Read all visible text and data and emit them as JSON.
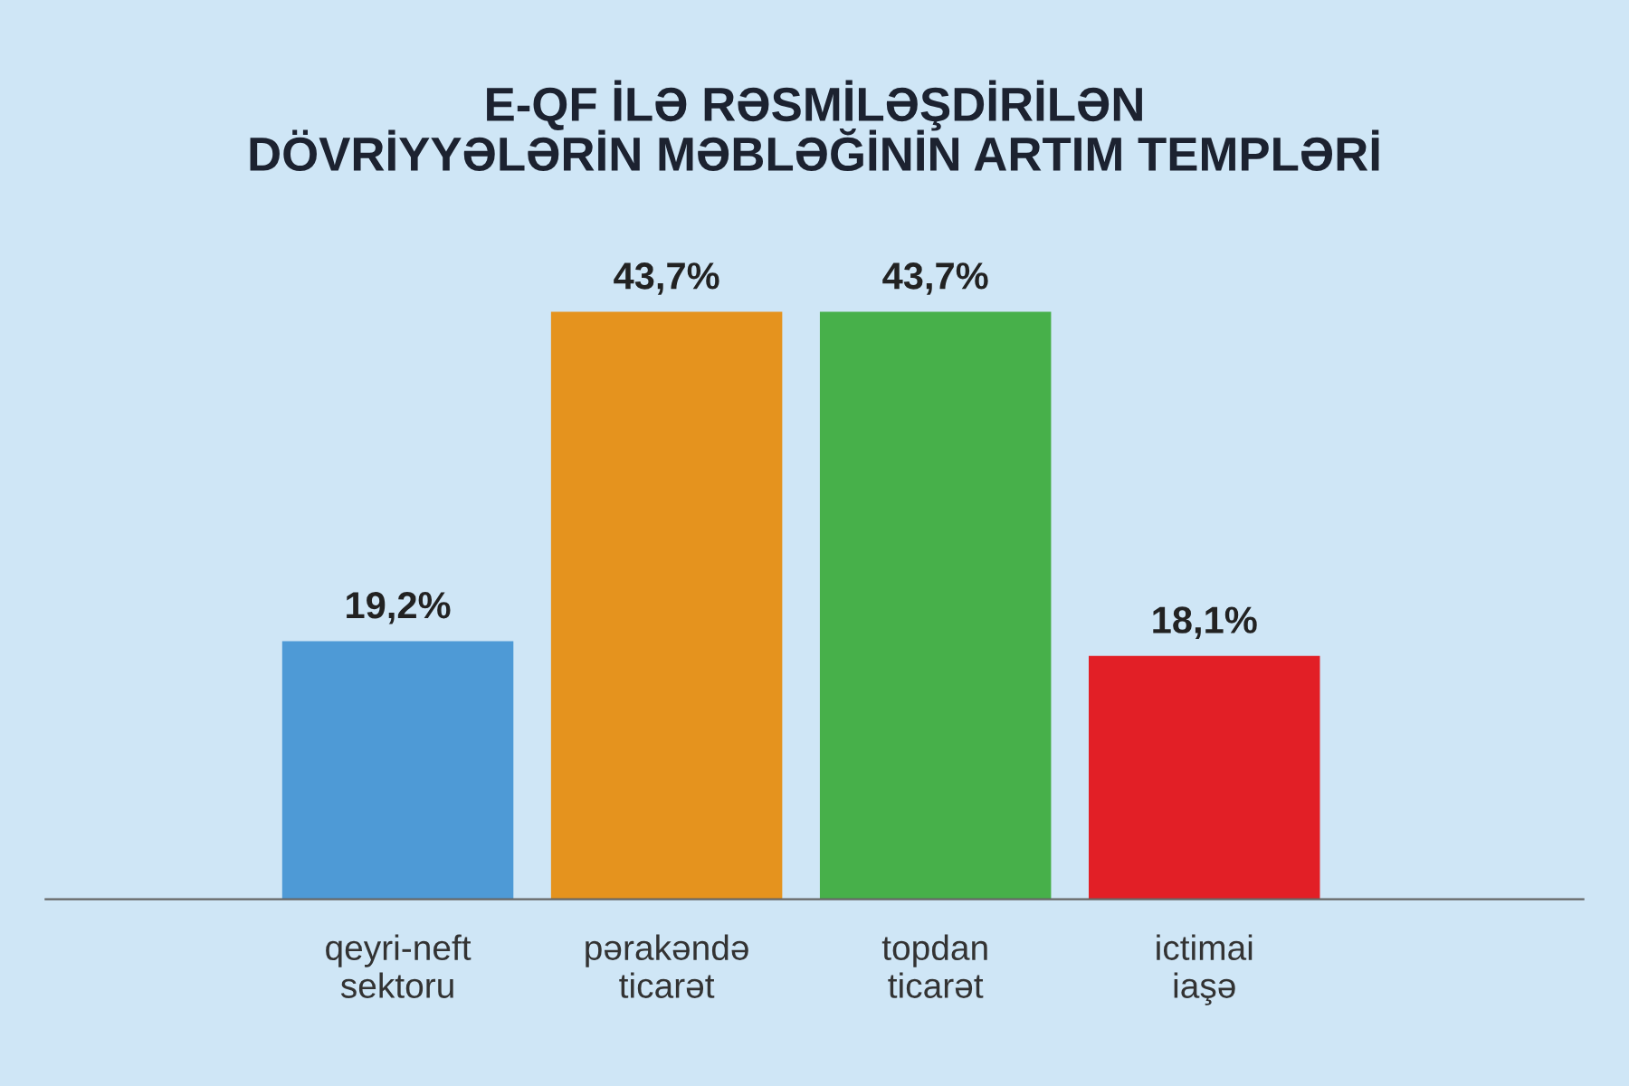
{
  "chart_data": {
    "type": "bar",
    "title": "E-QF İLƏ RƏSMİLƏŞDİRİLƏN\nDÖVRİYYƏLƏRİN MƏBLƏĞİNİN ARTIM TEMPLƏRİ",
    "categories": [
      "qeyri-neft\nsektoru",
      "pərakəndə\nticarət",
      "topdan\nticarət",
      "ictimai\niaşə"
    ],
    "values": [
      19.2,
      43.7,
      43.7,
      18.1
    ],
    "colors": [
      "#4e9ad6",
      "#e5931e",
      "#47b04a",
      "#e21f26"
    ],
    "value_labels": [
      "19,2%",
      "43,7%",
      "43,7%",
      "18,1%"
    ],
    "grid": false,
    "legend": false
  }
}
